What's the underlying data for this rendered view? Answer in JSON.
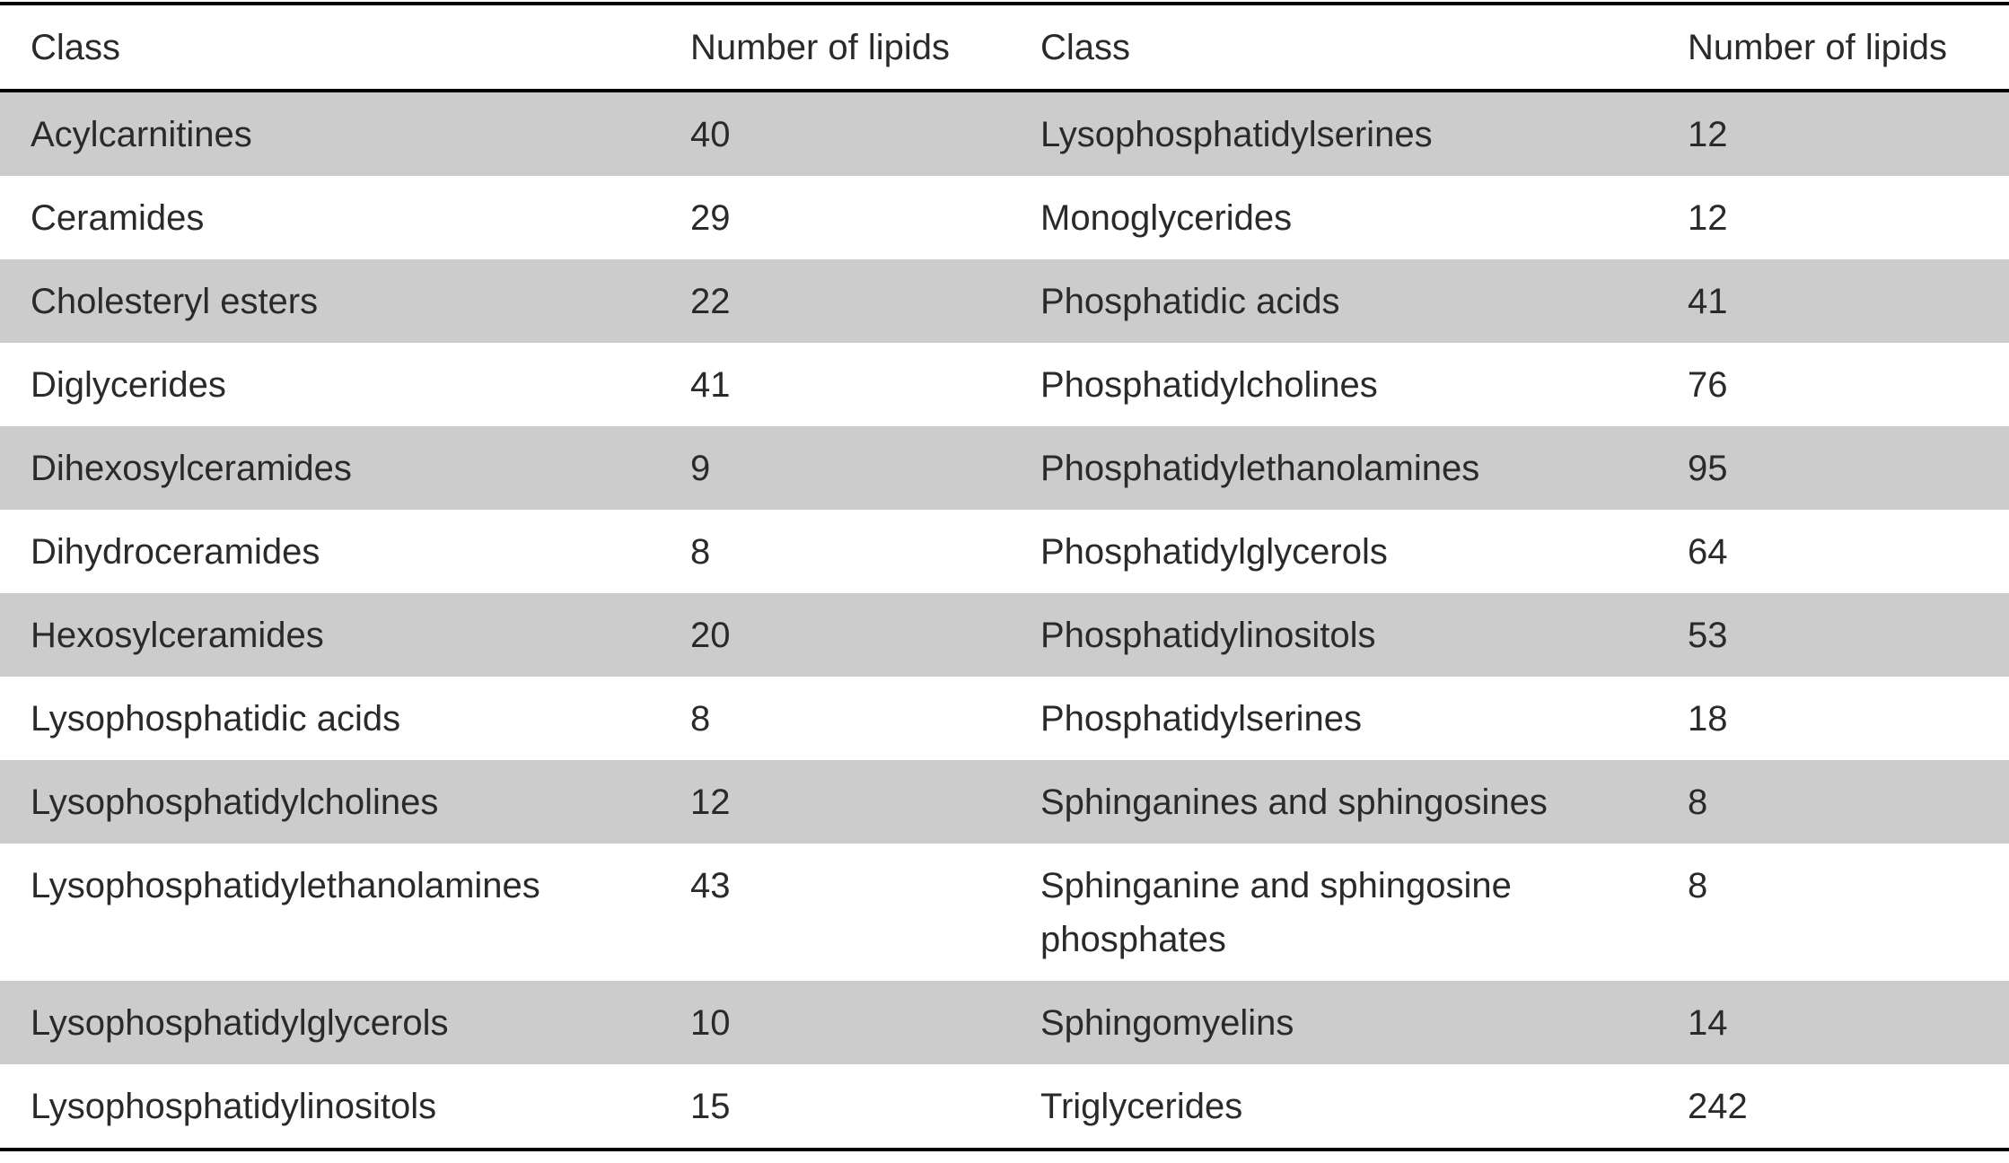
{
  "headers": [
    "Class",
    "Number of lipids",
    "Class",
    "Number of lipids"
  ],
  "rows": [
    {
      "class_a": "Acylcarnitines",
      "count_a": "40",
      "class_b": "Lysophosphatidylserines",
      "count_b": "12"
    },
    {
      "class_a": "Ceramides",
      "count_a": "29",
      "class_b": "Monoglycerides",
      "count_b": "12"
    },
    {
      "class_a": "Cholesteryl esters",
      "count_a": "22",
      "class_b": "Phosphatidic acids",
      "count_b": "41"
    },
    {
      "class_a": "Diglycerides",
      "count_a": "41",
      "class_b": "Phosphatidylcholines",
      "count_b": "76"
    },
    {
      "class_a": "Dihexosylceramides",
      "count_a": "9",
      "class_b": "Phosphatidylethanolamines",
      "count_b": "95"
    },
    {
      "class_a": "Dihydroceramides",
      "count_a": "8",
      "class_b": "Phosphatidylglycerols",
      "count_b": "64"
    },
    {
      "class_a": "Hexosylceramides",
      "count_a": "20",
      "class_b": "Phosphatidylinositols",
      "count_b": "53"
    },
    {
      "class_a": "Lysophosphatidic acids",
      "count_a": "8",
      "class_b": "Phosphatidylserines",
      "count_b": "18"
    },
    {
      "class_a": "Lysophosphatidylcholines",
      "count_a": "12",
      "class_b": "Sphinganines and sphingosines",
      "count_b": "8"
    },
    {
      "class_a": "Lysophosphatidylethanolamines",
      "count_a": "43",
      "class_b": "Sphinganine and sphingosine phosphates",
      "count_b": "8"
    },
    {
      "class_a": "Lysophosphatidylglycerols",
      "count_a": "10",
      "class_b": "Sphingomyelins",
      "count_b": "14"
    },
    {
      "class_a": "Lysophosphatidylinositols",
      "count_a": "15",
      "class_b": "Triglycerides",
      "count_b": "242"
    }
  ],
  "colors": {
    "shaded_row": "#cccccc",
    "rule": "#000000"
  }
}
